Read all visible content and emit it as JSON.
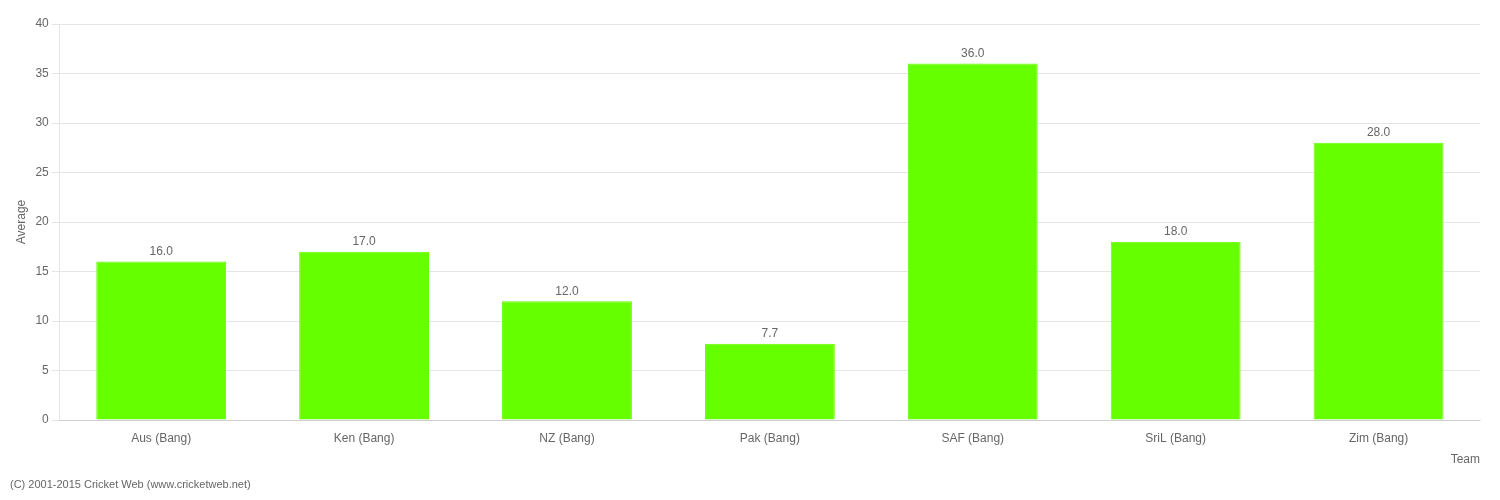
{
  "chart_data": {
    "type": "bar",
    "categories": [
      "Aus (Bang)",
      "Ken (Bang)",
      "NZ (Bang)",
      "Pak (Bang)",
      "SAF (Bang)",
      "SriL (Bang)",
      "Zim (Bang)"
    ],
    "values": [
      16.0,
      17.0,
      12.0,
      7.7,
      36.0,
      18.0,
      28.0
    ],
    "value_labels": [
      "16.0",
      "17.0",
      "12.0",
      "7.7",
      "36.0",
      "18.0",
      "28.0"
    ],
    "data_labels": true,
    "color": "#66ff00",
    "xlabel": "Team",
    "ylabel": "Average",
    "ylim": [
      0,
      40
    ],
    "yticks": [
      0,
      5,
      10,
      15,
      20,
      25,
      30,
      35,
      40
    ],
    "grid": true,
    "footer": "(C) 2001-2015 Cricket Web (www.cricketweb.net)"
  }
}
